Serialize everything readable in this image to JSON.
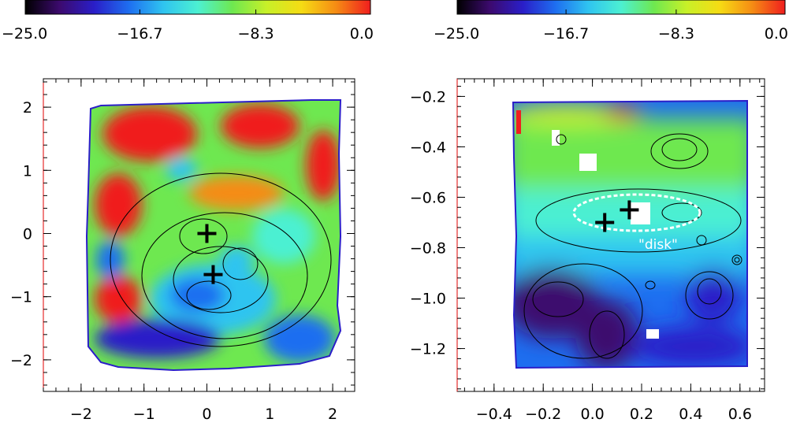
{
  "chart_data": [
    {
      "type": "heatmap",
      "title": "",
      "xlabel": "",
      "ylabel": "",
      "colorbar": {
        "range": [
          -25.0,
          0.0
        ],
        "tick_labels": [
          "−25.0",
          "−16.7",
          "−8.3",
          "0.0"
        ],
        "tick_values": [
          -25.0,
          -16.7,
          -8.3,
          0.0
        ],
        "colormap": [
          "#000000",
          "#3c0a6e",
          "#2a1ec8",
          "#1e6ef0",
          "#2fc4f0",
          "#4cf0d2",
          "#6ee850",
          "#c8f028",
          "#f5dc14",
          "#f58c14",
          "#f01e1e"
        ]
      },
      "xlim": [
        -2.6,
        2.35
      ],
      "ylim": [
        -2.5,
        2.45
      ],
      "x_ticks": [
        -2,
        -1,
        0,
        1,
        2
      ],
      "x_tick_labels": [
        "−2",
        "−1",
        "0",
        "1",
        "2"
      ],
      "y_ticks": [
        2,
        1,
        0,
        -1,
        -2
      ],
      "y_tick_labels": [
        "2",
        "1",
        "0",
        "−1",
        "−2"
      ],
      "markers": [
        {
          "symbol": "plus",
          "x": 0.0,
          "y": 0.0
        },
        {
          "symbol": "plus",
          "x": 0.1,
          "y": -0.65
        }
      ],
      "annotations": []
    },
    {
      "type": "heatmap",
      "title": "",
      "xlabel": "",
      "ylabel": "",
      "colorbar": {
        "range": [
          -25.0,
          0.0
        ],
        "tick_labels": [
          "−25.0",
          "−16.7",
          "−8.3",
          "0.0"
        ],
        "tick_values": [
          -25.0,
          -16.7,
          -8.3,
          0.0
        ],
        "colormap": [
          "#000000",
          "#3c0a6e",
          "#2a1ec8",
          "#1e6ef0",
          "#2fc4f0",
          "#4cf0d2",
          "#6ee850",
          "#c8f028",
          "#f5dc14",
          "#f58c14",
          "#f01e1e"
        ]
      },
      "xlim": [
        -0.55,
        0.7
      ],
      "ylim": [
        -1.37,
        -0.13
      ],
      "x_ticks": [
        -0.4,
        -0.2,
        0.0,
        0.2,
        0.4,
        0.6
      ],
      "x_tick_labels": [
        "−0.4",
        "−0.2",
        "0.0",
        "0.2",
        "0.4",
        "0.6"
      ],
      "y_ticks": [
        -0.2,
        -0.4,
        -0.6,
        -0.8,
        -1.0,
        -1.2
      ],
      "y_tick_labels": [
        "−0.2",
        "−0.4",
        "−0.6",
        "−0.8",
        "−1.0",
        "−1.2"
      ],
      "markers": [
        {
          "symbol": "plus",
          "x": 0.15,
          "y": -0.65
        },
        {
          "symbol": "plus",
          "x": 0.05,
          "y": -0.7
        }
      ],
      "annotations": [
        {
          "text": "\"disk\"",
          "x": 0.19,
          "y": -0.78
        }
      ]
    }
  ]
}
